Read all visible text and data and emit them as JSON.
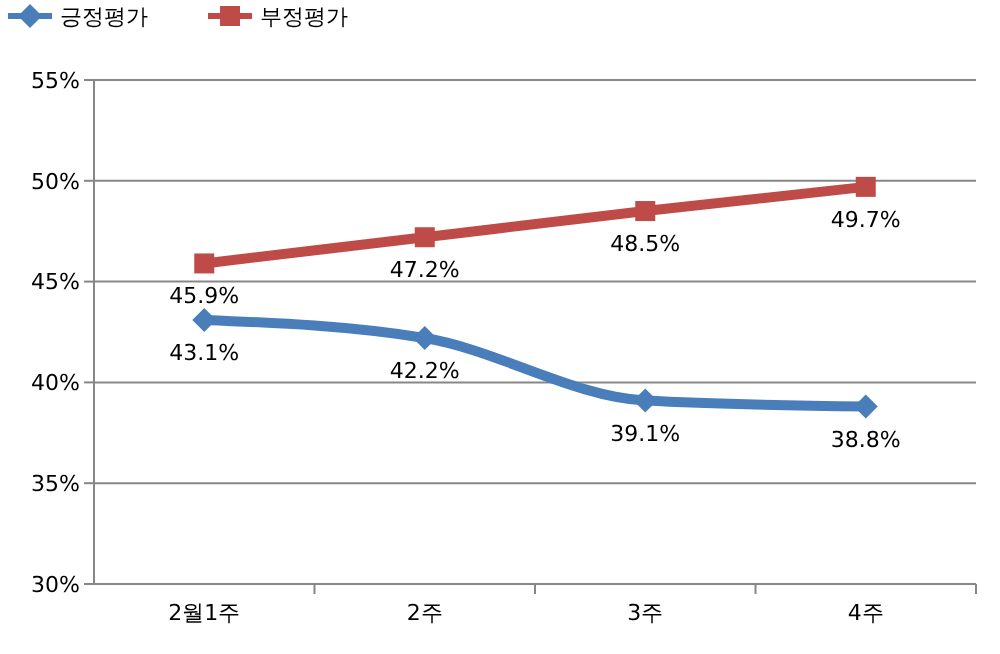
{
  "chart_data": {
    "type": "line",
    "categories": [
      "2월1주",
      "2주",
      "3주",
      "4주"
    ],
    "series": [
      {
        "name": "긍정평가",
        "color": "#4a7ebb",
        "marker": "diamond",
        "values": [
          43.1,
          42.2,
          39.1,
          38.8
        ],
        "value_labels": [
          "43.1%",
          "42.2%",
          "39.1%",
          "38.8%"
        ]
      },
      {
        "name": "부정평가",
        "color": "#be4b48",
        "marker": "square",
        "values": [
          45.9,
          47.2,
          48.5,
          49.7
        ],
        "value_labels": [
          "45.9%",
          "47.2%",
          "48.5%",
          "49.7%"
        ]
      }
    ],
    "ylim": [
      30,
      55
    ],
    "yticks": [
      {
        "value": 30,
        "label": "30%"
      },
      {
        "value": 35,
        "label": "35%"
      },
      {
        "value": 40,
        "label": "40%"
      },
      {
        "value": 45,
        "label": "45%"
      },
      {
        "value": 50,
        "label": "50%"
      },
      {
        "value": 55,
        "label": "55%"
      }
    ],
    "grid": "y",
    "legend": "top left",
    "line_style": "solid"
  }
}
